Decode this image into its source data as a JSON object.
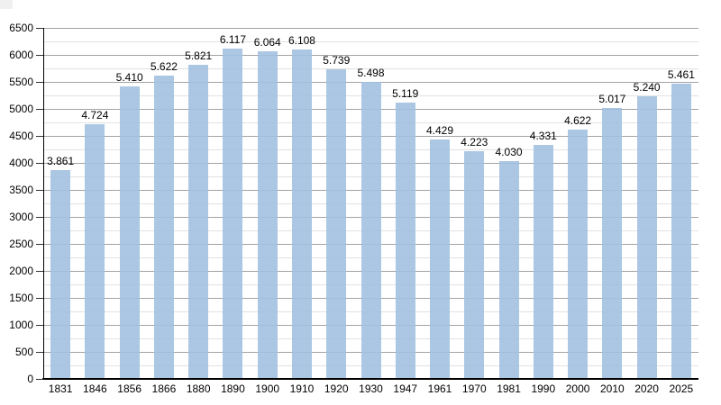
{
  "chart_data": {
    "type": "bar",
    "title": "",
    "xlabel": "",
    "ylabel": "",
    "categories": [
      "1831",
      "1846",
      "1856",
      "1866",
      "1880",
      "1890",
      "1900",
      "1910",
      "1920",
      "1930",
      "1947",
      "1961",
      "1970",
      "1981",
      "1990",
      "2000",
      "2010",
      "2020",
      "2025"
    ],
    "values": [
      3861,
      4724,
      5410,
      5622,
      5821,
      6117,
      6064,
      6108,
      5739,
      5498,
      5119,
      4429,
      4223,
      4030,
      4331,
      4622,
      5017,
      5240,
      5461
    ],
    "value_labels": [
      "3.861",
      "4.724",
      "5.410",
      "5.622",
      "5.821",
      "6.117",
      "6.064",
      "6.108",
      "5.739",
      "5.498",
      "5.119",
      "4.429",
      "4.223",
      "4.030",
      "4.331",
      "4.622",
      "5.017",
      "5.240",
      "5.461"
    ],
    "ylim": [
      0,
      6500
    ],
    "y_major_step": 500,
    "y_minor_step": 250,
    "y_tick_labels": [
      "0",
      "500",
      "1000",
      "1500",
      "2000",
      "2500",
      "3000",
      "3500",
      "4000",
      "4500",
      "5000",
      "5500",
      "6000",
      "6500"
    ],
    "grid": "horizontal, major and minor lines, on",
    "legend": "none",
    "colors": {
      "bar_fill": "#a2c1e0",
      "bar_fill_alpha": 0.9,
      "major_grid": "#a3a3a3",
      "minor_grid": "#e2e2e2",
      "axis": "#000000",
      "text": "#000000",
      "background": "#ffffff"
    }
  }
}
